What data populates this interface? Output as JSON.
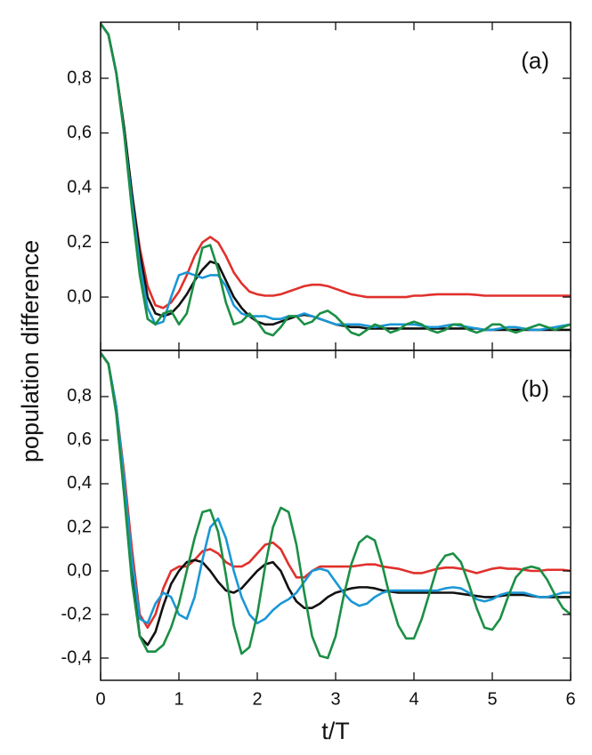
{
  "chart_data": [
    {
      "type": "line",
      "annotation": "(a)",
      "ylabel": "population difference",
      "x": [
        0,
        0.1,
        0.2,
        0.3,
        0.4,
        0.5,
        0.6,
        0.7,
        0.8,
        0.9,
        1,
        1.1,
        1.2,
        1.3,
        1.4,
        1.5,
        1.6,
        1.7,
        1.8,
        1.9,
        2,
        2.1,
        2.2,
        2.3,
        2.4,
        2.5,
        2.6,
        2.7,
        2.8,
        2.9,
        3,
        3.1,
        3.2,
        3.3,
        3.4,
        3.5,
        3.6,
        3.7,
        3.8,
        3.9,
        4,
        4.1,
        4.2,
        4.3,
        4.4,
        4.5,
        4.6,
        4.7,
        4.8,
        4.9,
        5,
        5.1,
        5.2,
        5.3,
        5.4,
        5.5,
        5.6,
        5.7,
        5.8,
        5.9,
        6
      ],
      "xlim": [
        0,
        6
      ],
      "xticks": [
        0,
        1,
        2,
        3,
        4,
        5,
        6
      ],
      "ylim": [
        -0.195,
        1.005
      ],
      "yticks": [
        {
          "value": 0,
          "label": "0,0"
        },
        {
          "value": 0.2,
          "label": "0,2"
        },
        {
          "value": 0.4,
          "label": "0,4"
        },
        {
          "value": 0.6,
          "label": "0,6"
        },
        {
          "value": 0.8,
          "label": "0,8"
        }
      ],
      "series": [
        {
          "color": "#e0312c",
          "values": [
            1.0,
            0.96,
            0.82,
            0.62,
            0.38,
            0.18,
            0.04,
            -0.03,
            -0.04,
            -0.02,
            0.02,
            0.08,
            0.15,
            0.2,
            0.22,
            0.2,
            0.15,
            0.09,
            0.05,
            0.02,
            0.01,
            0.005,
            0.005,
            0.01,
            0.02,
            0.03,
            0.04,
            0.045,
            0.045,
            0.04,
            0.03,
            0.02,
            0.01,
            0.005,
            0.0,
            0.0,
            0.0,
            0.0,
            0.0,
            0.0,
            0.005,
            0.005,
            0.008,
            0.01,
            0.01,
            0.01,
            0.01,
            0.01,
            0.008,
            0.005,
            0.005,
            0.005,
            0.005,
            0.005,
            0.005,
            0.005,
            0.005,
            0.005,
            0.005,
            0.005,
            0.005
          ]
        },
        {
          "color": "#111111",
          "values": [
            1.0,
            0.96,
            0.82,
            0.62,
            0.38,
            0.16,
            0.0,
            -0.06,
            -0.07,
            -0.06,
            -0.03,
            0.01,
            0.06,
            0.1,
            0.13,
            0.12,
            0.06,
            0.0,
            -0.04,
            -0.07,
            -0.09,
            -0.1,
            -0.1,
            -0.09,
            -0.08,
            -0.07,
            -0.065,
            -0.07,
            -0.08,
            -0.09,
            -0.1,
            -0.105,
            -0.11,
            -0.11,
            -0.115,
            -0.115,
            -0.115,
            -0.115,
            -0.115,
            -0.115,
            -0.115,
            -0.115,
            -0.115,
            -0.115,
            -0.115,
            -0.115,
            -0.115,
            -0.115,
            -0.115,
            -0.12,
            -0.12,
            -0.12,
            -0.12,
            -0.12,
            -0.12,
            -0.12,
            -0.12,
            -0.12,
            -0.12,
            -0.12,
            -0.12
          ]
        },
        {
          "color": "#1a97d5",
          "values": [
            1.0,
            0.96,
            0.82,
            0.6,
            0.35,
            0.12,
            -0.04,
            -0.1,
            -0.09,
            0.0,
            0.08,
            0.09,
            0.08,
            0.07,
            0.08,
            0.08,
            0.04,
            -0.03,
            -0.06,
            -0.07,
            -0.07,
            -0.07,
            -0.08,
            -0.08,
            -0.07,
            -0.07,
            -0.06,
            -0.07,
            -0.08,
            -0.09,
            -0.1,
            -0.1,
            -0.1,
            -0.1,
            -0.105,
            -0.11,
            -0.105,
            -0.1,
            -0.1,
            -0.1,
            -0.1,
            -0.105,
            -0.11,
            -0.11,
            -0.105,
            -0.1,
            -0.105,
            -0.11,
            -0.115,
            -0.12,
            -0.12,
            -0.115,
            -0.11,
            -0.11,
            -0.115,
            -0.12,
            -0.12,
            -0.115,
            -0.11,
            -0.105,
            -0.1
          ]
        },
        {
          "color": "#1b8f45",
          "values": [
            1.0,
            0.96,
            0.82,
            0.6,
            0.32,
            0.08,
            -0.08,
            -0.1,
            -0.06,
            -0.05,
            -0.1,
            -0.06,
            0.06,
            0.18,
            0.19,
            0.1,
            -0.02,
            -0.1,
            -0.09,
            -0.06,
            -0.09,
            -0.13,
            -0.14,
            -0.11,
            -0.07,
            -0.07,
            -0.1,
            -0.09,
            -0.06,
            -0.05,
            -0.07,
            -0.1,
            -0.13,
            -0.14,
            -0.12,
            -0.1,
            -0.11,
            -0.13,
            -0.12,
            -0.1,
            -0.09,
            -0.1,
            -0.12,
            -0.13,
            -0.12,
            -0.1,
            -0.1,
            -0.12,
            -0.13,
            -0.12,
            -0.1,
            -0.1,
            -0.12,
            -0.13,
            -0.12,
            -0.11,
            -0.1,
            -0.11,
            -0.12,
            -0.11,
            -0.1
          ]
        }
      ]
    },
    {
      "type": "line",
      "annotation": "(b)",
      "xlabel": "t/T",
      "x": [
        0,
        0.1,
        0.2,
        0.3,
        0.4,
        0.5,
        0.6,
        0.7,
        0.8,
        0.9,
        1,
        1.1,
        1.2,
        1.3,
        1.4,
        1.5,
        1.6,
        1.7,
        1.8,
        1.9,
        2,
        2.1,
        2.2,
        2.3,
        2.4,
        2.5,
        2.6,
        2.7,
        2.8,
        2.9,
        3,
        3.1,
        3.2,
        3.3,
        3.4,
        3.5,
        3.6,
        3.7,
        3.8,
        3.9,
        4,
        4.1,
        4.2,
        4.3,
        4.4,
        4.5,
        4.6,
        4.7,
        4.8,
        4.9,
        5,
        5.1,
        5.2,
        5.3,
        5.4,
        5.5,
        5.6,
        5.7,
        5.8,
        5.9,
        6
      ],
      "xlim": [
        0,
        6
      ],
      "xticks": [
        0,
        1,
        2,
        3,
        4,
        5,
        6
      ],
      "ylim": [
        -0.502,
        1.012
      ],
      "yticks": [
        {
          "value": -0.4,
          "label": "-0,4"
        },
        {
          "value": -0.2,
          "label": "-0,2"
        },
        {
          "value": 0,
          "label": "0,0"
        },
        {
          "value": 0.2,
          "label": "0,2"
        },
        {
          "value": 0.4,
          "label": "0,4"
        },
        {
          "value": 0.6,
          "label": "0,6"
        },
        {
          "value": 0.8,
          "label": "0,8"
        }
      ],
      "series": [
        {
          "color": "#e0312c",
          "values": [
            1.0,
            0.95,
            0.75,
            0.45,
            0.1,
            -0.2,
            -0.26,
            -0.2,
            -0.08,
            0.0,
            0.02,
            0.02,
            0.05,
            0.09,
            0.1,
            0.08,
            0.04,
            0.02,
            0.02,
            0.04,
            0.08,
            0.12,
            0.13,
            0.1,
            0.03,
            -0.03,
            -0.03,
            0.0,
            0.02,
            0.02,
            0.02,
            0.02,
            0.02,
            0.025,
            0.03,
            0.03,
            0.02,
            0.015,
            0.01,
            0.0,
            -0.01,
            -0.01,
            0.0,
            0.01,
            0.015,
            0.015,
            0.01,
            0.0,
            -0.01,
            0.0,
            0.01,
            0.015,
            0.01,
            0.01,
            0.005,
            0.0,
            0.0,
            0.005,
            0.005,
            0.005,
            0.0
          ]
        },
        {
          "color": "#111111",
          "values": [
            1.0,
            0.95,
            0.75,
            0.4,
            0.0,
            -0.3,
            -0.34,
            -0.28,
            -0.16,
            -0.06,
            0.0,
            0.04,
            0.05,
            0.04,
            0.0,
            -0.05,
            -0.09,
            -0.1,
            -0.08,
            -0.04,
            0.0,
            0.03,
            0.04,
            0.0,
            -0.08,
            -0.14,
            -0.17,
            -0.17,
            -0.15,
            -0.12,
            -0.1,
            -0.09,
            -0.08,
            -0.075,
            -0.075,
            -0.08,
            -0.09,
            -0.095,
            -0.1,
            -0.1,
            -0.1,
            -0.1,
            -0.1,
            -0.1,
            -0.1,
            -0.1,
            -0.105,
            -0.11,
            -0.115,
            -0.12,
            -0.12,
            -0.115,
            -0.11,
            -0.11,
            -0.11,
            -0.115,
            -0.12,
            -0.12,
            -0.12,
            -0.12,
            -0.12
          ]
        },
        {
          "color": "#1a97d5",
          "values": [
            1.0,
            0.95,
            0.75,
            0.42,
            0.05,
            -0.22,
            -0.24,
            -0.15,
            -0.1,
            -0.12,
            -0.2,
            -0.22,
            -0.12,
            0.05,
            0.2,
            0.24,
            0.15,
            0.0,
            -0.12,
            -0.2,
            -0.24,
            -0.22,
            -0.18,
            -0.15,
            -0.13,
            -0.1,
            -0.05,
            0.0,
            0.01,
            0.0,
            -0.05,
            -0.1,
            -0.14,
            -0.16,
            -0.15,
            -0.12,
            -0.1,
            -0.09,
            -0.09,
            -0.09,
            -0.09,
            -0.09,
            -0.09,
            -0.09,
            -0.08,
            -0.075,
            -0.08,
            -0.1,
            -0.13,
            -0.14,
            -0.13,
            -0.11,
            -0.1,
            -0.1,
            -0.1,
            -0.11,
            -0.12,
            -0.12,
            -0.11,
            -0.1,
            -0.1
          ]
        },
        {
          "color": "#1b8f45",
          "values": [
            1.0,
            0.95,
            0.72,
            0.35,
            -0.05,
            -0.3,
            -0.37,
            -0.37,
            -0.34,
            -0.26,
            -0.15,
            0.0,
            0.15,
            0.27,
            0.28,
            0.18,
            -0.02,
            -0.25,
            -0.38,
            -0.35,
            -0.2,
            0.02,
            0.2,
            0.29,
            0.27,
            0.12,
            -0.1,
            -0.3,
            -0.39,
            -0.4,
            -0.3,
            -0.12,
            0.03,
            0.13,
            0.16,
            0.14,
            0.02,
            -0.13,
            -0.25,
            -0.31,
            -0.31,
            -0.22,
            -0.1,
            0.02,
            0.07,
            0.08,
            0.04,
            -0.06,
            -0.17,
            -0.26,
            -0.27,
            -0.22,
            -0.12,
            -0.03,
            0.01,
            0.02,
            0.01,
            -0.04,
            -0.11,
            -0.17,
            -0.2
          ]
        }
      ]
    }
  ]
}
